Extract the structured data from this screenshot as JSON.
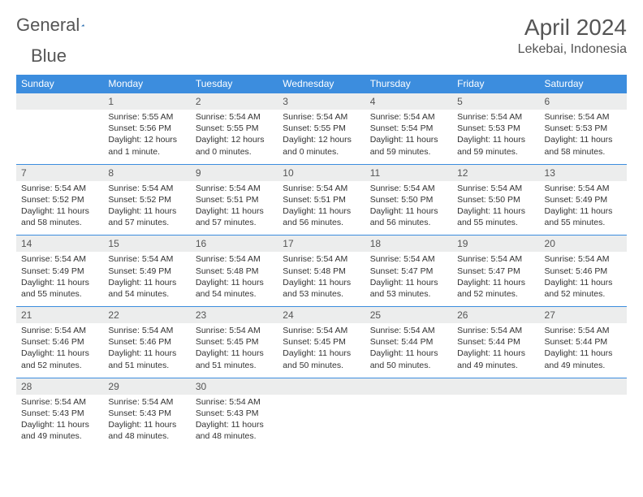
{
  "brand": {
    "word1": "General",
    "word2": "Blue"
  },
  "title": "April 2024",
  "location": "Lekebai, Indonesia",
  "colors": {
    "header_bg": "#3c8dde",
    "header_text": "#ffffff",
    "daynum_bg": "#eceded",
    "border": "#3c8dde",
    "text": "#333333",
    "title": "#555555"
  },
  "day_headers": [
    "Sunday",
    "Monday",
    "Tuesday",
    "Wednesday",
    "Thursday",
    "Friday",
    "Saturday"
  ],
  "weeks": [
    [
      {
        "n": "",
        "sr": "",
        "ss": "",
        "dl": ""
      },
      {
        "n": "1",
        "sr": "Sunrise: 5:55 AM",
        "ss": "Sunset: 5:56 PM",
        "dl": "Daylight: 12 hours and 1 minute."
      },
      {
        "n": "2",
        "sr": "Sunrise: 5:54 AM",
        "ss": "Sunset: 5:55 PM",
        "dl": "Daylight: 12 hours and 0 minutes."
      },
      {
        "n": "3",
        "sr": "Sunrise: 5:54 AM",
        "ss": "Sunset: 5:55 PM",
        "dl": "Daylight: 12 hours and 0 minutes."
      },
      {
        "n": "4",
        "sr": "Sunrise: 5:54 AM",
        "ss": "Sunset: 5:54 PM",
        "dl": "Daylight: 11 hours and 59 minutes."
      },
      {
        "n": "5",
        "sr": "Sunrise: 5:54 AM",
        "ss": "Sunset: 5:53 PM",
        "dl": "Daylight: 11 hours and 59 minutes."
      },
      {
        "n": "6",
        "sr": "Sunrise: 5:54 AM",
        "ss": "Sunset: 5:53 PM",
        "dl": "Daylight: 11 hours and 58 minutes."
      }
    ],
    [
      {
        "n": "7",
        "sr": "Sunrise: 5:54 AM",
        "ss": "Sunset: 5:52 PM",
        "dl": "Daylight: 11 hours and 58 minutes."
      },
      {
        "n": "8",
        "sr": "Sunrise: 5:54 AM",
        "ss": "Sunset: 5:52 PM",
        "dl": "Daylight: 11 hours and 57 minutes."
      },
      {
        "n": "9",
        "sr": "Sunrise: 5:54 AM",
        "ss": "Sunset: 5:51 PM",
        "dl": "Daylight: 11 hours and 57 minutes."
      },
      {
        "n": "10",
        "sr": "Sunrise: 5:54 AM",
        "ss": "Sunset: 5:51 PM",
        "dl": "Daylight: 11 hours and 56 minutes."
      },
      {
        "n": "11",
        "sr": "Sunrise: 5:54 AM",
        "ss": "Sunset: 5:50 PM",
        "dl": "Daylight: 11 hours and 56 minutes."
      },
      {
        "n": "12",
        "sr": "Sunrise: 5:54 AM",
        "ss": "Sunset: 5:50 PM",
        "dl": "Daylight: 11 hours and 55 minutes."
      },
      {
        "n": "13",
        "sr": "Sunrise: 5:54 AM",
        "ss": "Sunset: 5:49 PM",
        "dl": "Daylight: 11 hours and 55 minutes."
      }
    ],
    [
      {
        "n": "14",
        "sr": "Sunrise: 5:54 AM",
        "ss": "Sunset: 5:49 PM",
        "dl": "Daylight: 11 hours and 55 minutes."
      },
      {
        "n": "15",
        "sr": "Sunrise: 5:54 AM",
        "ss": "Sunset: 5:49 PM",
        "dl": "Daylight: 11 hours and 54 minutes."
      },
      {
        "n": "16",
        "sr": "Sunrise: 5:54 AM",
        "ss": "Sunset: 5:48 PM",
        "dl": "Daylight: 11 hours and 54 minutes."
      },
      {
        "n": "17",
        "sr": "Sunrise: 5:54 AM",
        "ss": "Sunset: 5:48 PM",
        "dl": "Daylight: 11 hours and 53 minutes."
      },
      {
        "n": "18",
        "sr": "Sunrise: 5:54 AM",
        "ss": "Sunset: 5:47 PM",
        "dl": "Daylight: 11 hours and 53 minutes."
      },
      {
        "n": "19",
        "sr": "Sunrise: 5:54 AM",
        "ss": "Sunset: 5:47 PM",
        "dl": "Daylight: 11 hours and 52 minutes."
      },
      {
        "n": "20",
        "sr": "Sunrise: 5:54 AM",
        "ss": "Sunset: 5:46 PM",
        "dl": "Daylight: 11 hours and 52 minutes."
      }
    ],
    [
      {
        "n": "21",
        "sr": "Sunrise: 5:54 AM",
        "ss": "Sunset: 5:46 PM",
        "dl": "Daylight: 11 hours and 52 minutes."
      },
      {
        "n": "22",
        "sr": "Sunrise: 5:54 AM",
        "ss": "Sunset: 5:46 PM",
        "dl": "Daylight: 11 hours and 51 minutes."
      },
      {
        "n": "23",
        "sr": "Sunrise: 5:54 AM",
        "ss": "Sunset: 5:45 PM",
        "dl": "Daylight: 11 hours and 51 minutes."
      },
      {
        "n": "24",
        "sr": "Sunrise: 5:54 AM",
        "ss": "Sunset: 5:45 PM",
        "dl": "Daylight: 11 hours and 50 minutes."
      },
      {
        "n": "25",
        "sr": "Sunrise: 5:54 AM",
        "ss": "Sunset: 5:44 PM",
        "dl": "Daylight: 11 hours and 50 minutes."
      },
      {
        "n": "26",
        "sr": "Sunrise: 5:54 AM",
        "ss": "Sunset: 5:44 PM",
        "dl": "Daylight: 11 hours and 49 minutes."
      },
      {
        "n": "27",
        "sr": "Sunrise: 5:54 AM",
        "ss": "Sunset: 5:44 PM",
        "dl": "Daylight: 11 hours and 49 minutes."
      }
    ],
    [
      {
        "n": "28",
        "sr": "Sunrise: 5:54 AM",
        "ss": "Sunset: 5:43 PM",
        "dl": "Daylight: 11 hours and 49 minutes."
      },
      {
        "n": "29",
        "sr": "Sunrise: 5:54 AM",
        "ss": "Sunset: 5:43 PM",
        "dl": "Daylight: 11 hours and 48 minutes."
      },
      {
        "n": "30",
        "sr": "Sunrise: 5:54 AM",
        "ss": "Sunset: 5:43 PM",
        "dl": "Daylight: 11 hours and 48 minutes."
      },
      {
        "n": "",
        "sr": "",
        "ss": "",
        "dl": ""
      },
      {
        "n": "",
        "sr": "",
        "ss": "",
        "dl": ""
      },
      {
        "n": "",
        "sr": "",
        "ss": "",
        "dl": ""
      },
      {
        "n": "",
        "sr": "",
        "ss": "",
        "dl": ""
      }
    ]
  ]
}
